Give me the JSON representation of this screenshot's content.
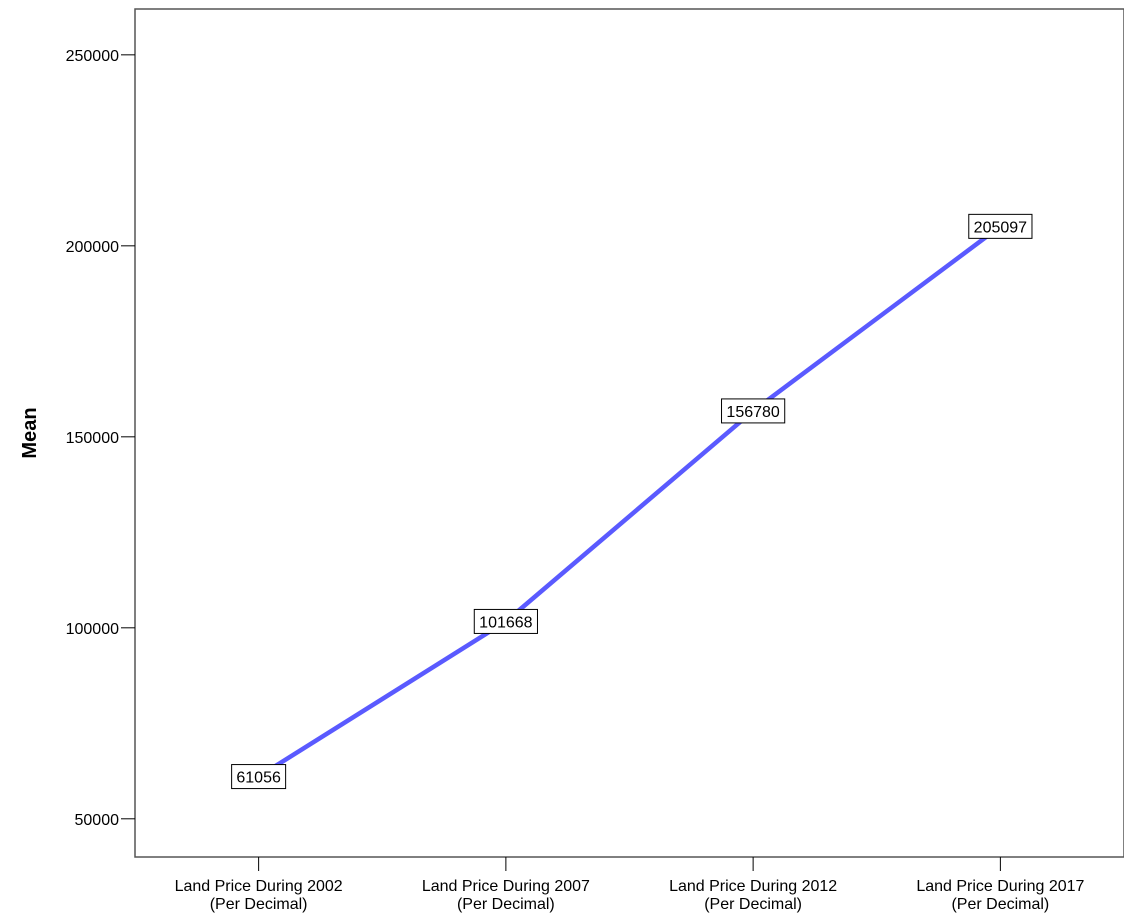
{
  "chart_data": {
    "type": "line",
    "title": "",
    "xlabel": "",
    "ylabel": "Mean",
    "ylim": [
      40000,
      262000
    ],
    "yticks": [
      50000,
      100000,
      150000,
      200000,
      250000
    ],
    "ytick_labels": [
      "50000",
      "100000",
      "150000",
      "200000",
      "250000"
    ],
    "categories": [
      [
        "Land Price During 2002",
        "(Per Decimal)"
      ],
      [
        "Land Price During 2007",
        "(Per Decimal)"
      ],
      [
        "Land Price During 2012",
        "(Per Decimal)"
      ],
      [
        "Land Price During 2017",
        "(Per Decimal)"
      ]
    ],
    "series": [
      {
        "values": [
          61056,
          101668,
          156780,
          205097
        ],
        "color": "#5a5aff"
      }
    ],
    "data_labels": [
      "61056",
      "101668",
      "156780",
      "205097"
    ],
    "grid": false,
    "legend": "none"
  }
}
